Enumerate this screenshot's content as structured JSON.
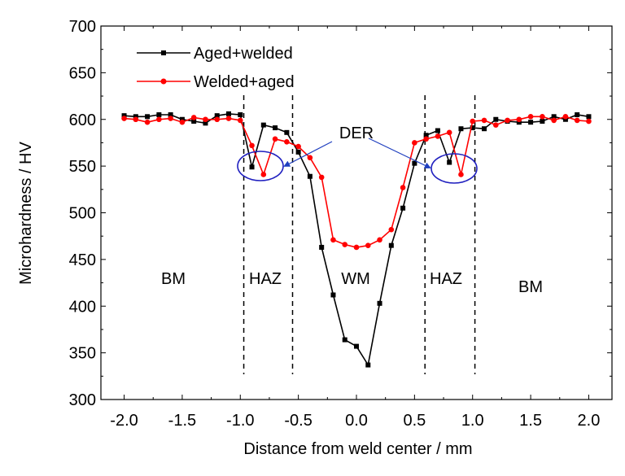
{
  "chart_data": {
    "type": "line",
    "title": "",
    "xlabel": "Distance from weld center / mm",
    "ylabel": "Microhardness / HV",
    "xlim": [
      -2.2,
      2.2
    ],
    "ylim": [
      300,
      700
    ],
    "xticks": [
      "-2.0",
      "-1.5",
      "-1.0",
      "-0.5",
      "0.0",
      "0.5",
      "1.0",
      "1.5",
      "2.0"
    ],
    "yticks": [
      "300",
      "350",
      "400",
      "450",
      "500",
      "550",
      "600",
      "650",
      "700"
    ],
    "grid": false,
    "legend_position": "top-left",
    "series": [
      {
        "name": "Aged+welded",
        "color": "#000000",
        "marker": "square",
        "x": [
          -2.0,
          -1.9,
          -1.8,
          -1.7,
          -1.6,
          -1.5,
          -1.4,
          -1.3,
          -1.2,
          -1.1,
          -1.0,
          -0.9,
          -0.8,
          -0.7,
          -0.6,
          -0.5,
          -0.4,
          -0.3,
          -0.2,
          -0.1,
          0.0,
          0.1,
          0.2,
          0.3,
          0.4,
          0.5,
          0.6,
          0.7,
          0.8,
          0.9,
          1.0,
          1.1,
          1.2,
          1.3,
          1.4,
          1.5,
          1.6,
          1.7,
          1.8,
          1.9,
          2.0
        ],
        "y": [
          604,
          603,
          603,
          605,
          605,
          600,
          598,
          596,
          604,
          606,
          605,
          549,
          594,
          591,
          586,
          565,
          539,
          463,
          412,
          364,
          357,
          337,
          403,
          465,
          505,
          553,
          583,
          588,
          554,
          590,
          591,
          590,
          600,
          598,
          597,
          597,
          598,
          603,
          600,
          605,
          603
        ]
      },
      {
        "name": "Welded+aged",
        "color": "#ff0000",
        "marker": "circle",
        "x": [
          -2.0,
          -1.9,
          -1.8,
          -1.7,
          -1.6,
          -1.5,
          -1.4,
          -1.3,
          -1.2,
          -1.1,
          -1.0,
          -0.9,
          -0.8,
          -0.7,
          -0.6,
          -0.5,
          -0.4,
          -0.3,
          -0.2,
          -0.1,
          0.0,
          0.1,
          0.2,
          0.3,
          0.4,
          0.5,
          0.6,
          0.7,
          0.8,
          0.9,
          1.0,
          1.1,
          1.2,
          1.3,
          1.4,
          1.5,
          1.6,
          1.7,
          1.8,
          1.9,
          2.0
        ],
        "y": [
          601,
          600,
          597,
          600,
          601,
          597,
          602,
          600,
          600,
          601,
          599,
          572,
          541,
          579,
          576,
          571,
          559,
          538,
          471,
          466,
          463,
          465,
          471,
          482,
          527,
          575,
          579,
          582,
          586,
          541,
          598,
          599,
          594,
          599,
          600,
          603,
          603,
          599,
          603,
          599,
          598
        ]
      }
    ],
    "annotations": {
      "der_label": "DER",
      "regions": [
        "BM",
        "HAZ",
        "WM",
        "HAZ",
        "BM"
      ],
      "boundaries_x": [
        -0.97,
        -0.55,
        0.59,
        1.02
      ]
    }
  }
}
